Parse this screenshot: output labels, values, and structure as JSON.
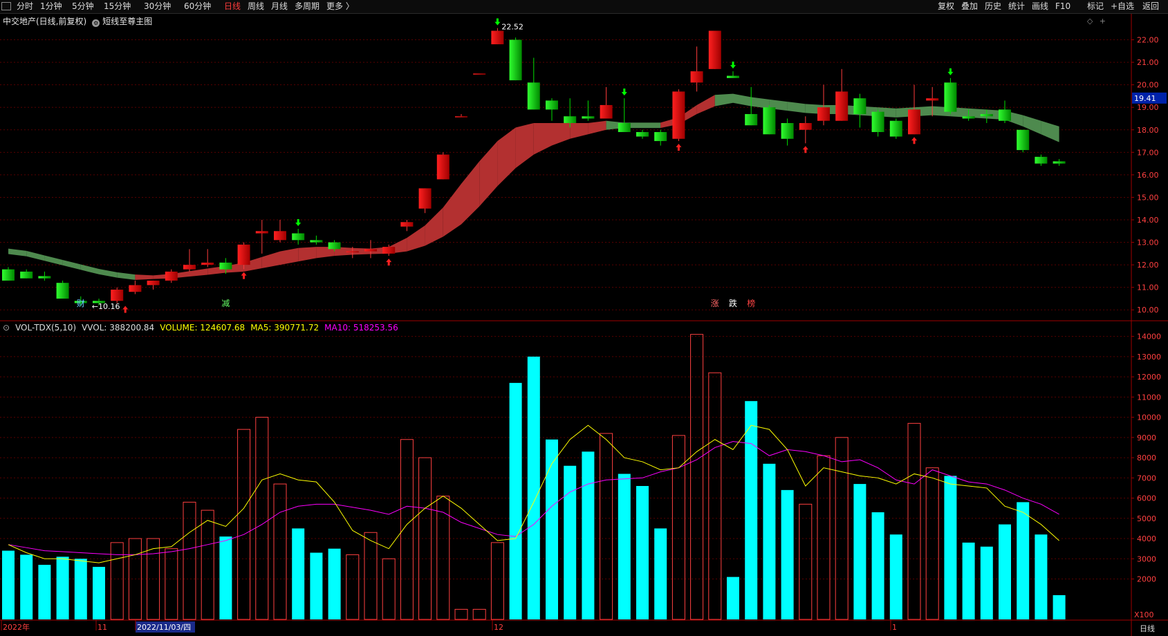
{
  "toolbar": {
    "left_items": [
      "分时",
      "1分钟",
      "5分钟",
      "15分钟",
      "30分钟",
      "60分钟",
      "日线",
      "周线",
      "月线",
      "多周期",
      "更多 〉"
    ],
    "active": "日线",
    "right_items": [
      "复权",
      "叠加",
      "历史",
      "统计",
      "画线",
      "F10",
      "标记",
      "+自选",
      "返回"
    ]
  },
  "title": {
    "stock": "中交地产(日线,前复权)",
    "indicator": "短线至尊主图"
  },
  "vol_legend": {
    "name": "VOL-TDX(5,10)",
    "vvol": "VVOL: 388200.84",
    "volume": "VOLUME: 124607.68",
    "ma5": "MA5: 390771.72",
    "ma10": "MA10: 518253.56"
  },
  "price_panel": {
    "current_price_tag": "19.41",
    "high_label": "22.52",
    "low_label": "10.16",
    "signal_labels": [
      "财",
      "减",
      "涨",
      "跌",
      "榜"
    ]
  },
  "x_axis": {
    "labels": [
      "2022年",
      "11",
      "2022/11/03/四",
      "12",
      "1"
    ],
    "period": "日线",
    "vol_unit": "X100"
  },
  "colors": {
    "up": "#ff3b3b",
    "down": "#00e000",
    "vol_down": "#00ffff",
    "ma5": "#ffff00",
    "ma10": "#ff00ff",
    "band_up": "#b33030",
    "band_down": "#4e8a4e",
    "grid": "#5a0000"
  },
  "chart_data": [
    {
      "type": "candlestick",
      "title": "中交地产(日线,前复权)",
      "ylim": [
        9.7,
        22.6
      ],
      "yticks": [
        10.0,
        11.0,
        12.0,
        13.0,
        14.0,
        15.0,
        16.0,
        17.0,
        18.0,
        19.0,
        20.0,
        21.0,
        22.0
      ],
      "series": [
        {
          "o": 11.8,
          "h": 11.9,
          "l": 11.3,
          "c": 11.3
        },
        {
          "o": 11.7,
          "h": 11.8,
          "l": 11.4,
          "c": 11.4
        },
        {
          "o": 11.5,
          "h": 11.7,
          "l": 11.3,
          "c": 11.4
        },
        {
          "o": 11.2,
          "h": 11.3,
          "l": 10.5,
          "c": 10.5
        },
        {
          "o": 10.4,
          "h": 10.6,
          "l": 10.16,
          "c": 10.3
        },
        {
          "o": 10.4,
          "h": 10.5,
          "l": 10.2,
          "c": 10.3
        },
        {
          "o": 10.4,
          "h": 11.0,
          "l": 10.3,
          "c": 10.9
        },
        {
          "o": 10.8,
          "h": 11.3,
          "l": 10.7,
          "c": 11.1
        },
        {
          "o": 11.1,
          "h": 11.3,
          "l": 10.9,
          "c": 11.3
        },
        {
          "o": 11.3,
          "h": 11.8,
          "l": 11.2,
          "c": 11.7
        },
        {
          "o": 11.8,
          "h": 12.7,
          "l": 11.7,
          "c": 12.0
        },
        {
          "o": 12.0,
          "h": 12.7,
          "l": 11.9,
          "c": 12.1
        },
        {
          "o": 12.1,
          "h": 12.3,
          "l": 11.6,
          "c": 11.8
        },
        {
          "o": 12.0,
          "h": 13.0,
          "l": 11.8,
          "c": 12.9
        },
        {
          "o": 13.4,
          "h": 14.0,
          "l": 12.5,
          "c": 13.5
        },
        {
          "o": 13.1,
          "h": 14.0,
          "l": 13.0,
          "c": 13.5
        },
        {
          "o": 13.4,
          "h": 13.6,
          "l": 12.9,
          "c": 13.1
        },
        {
          "o": 13.1,
          "h": 13.3,
          "l": 12.9,
          "c": 13.0
        },
        {
          "o": 13.0,
          "h": 13.1,
          "l": 12.6,
          "c": 12.7
        },
        {
          "o": 12.6,
          "h": 12.8,
          "l": 12.3,
          "c": 12.6
        },
        {
          "o": 12.6,
          "h": 13.1,
          "l": 12.3,
          "c": 12.7
        },
        {
          "o": 12.5,
          "h": 12.9,
          "l": 12.4,
          "c": 12.8
        },
        {
          "o": 13.7,
          "h": 14.0,
          "l": 13.5,
          "c": 13.9
        },
        {
          "o": 14.5,
          "h": 15.4,
          "l": 14.3,
          "c": 15.4
        },
        {
          "o": 15.8,
          "h": 17.0,
          "l": 15.8,
          "c": 16.9
        },
        {
          "o": 18.6,
          "h": 18.7,
          "l": 18.6,
          "c": 18.6
        },
        {
          "o": 20.5,
          "h": 20.5,
          "l": 20.5,
          "c": 20.5
        },
        {
          "o": 21.8,
          "h": 22.52,
          "l": 21.8,
          "c": 22.4
        },
        {
          "o": 22.0,
          "h": 22.1,
          "l": 20.2,
          "c": 20.2
        },
        {
          "o": 20.1,
          "h": 21.2,
          "l": 18.9,
          "c": 18.9
        },
        {
          "o": 19.3,
          "h": 19.4,
          "l": 18.4,
          "c": 18.9
        },
        {
          "o": 18.6,
          "h": 19.4,
          "l": 18.1,
          "c": 18.3
        },
        {
          "o": 18.6,
          "h": 19.3,
          "l": 18.4,
          "c": 18.5
        },
        {
          "o": 18.5,
          "h": 19.9,
          "l": 18.5,
          "c": 19.1
        },
        {
          "o": 18.3,
          "h": 19.4,
          "l": 17.9,
          "c": 17.9
        },
        {
          "o": 17.9,
          "h": 18.0,
          "l": 17.6,
          "c": 17.7
        },
        {
          "o": 17.9,
          "h": 18.0,
          "l": 17.3,
          "c": 17.5
        },
        {
          "o": 17.6,
          "h": 19.8,
          "l": 17.5,
          "c": 19.7
        },
        {
          "o": 20.1,
          "h": 21.7,
          "l": 19.7,
          "c": 20.6
        },
        {
          "o": 20.7,
          "h": 22.4,
          "l": 20.7,
          "c": 22.4
        },
        {
          "o": 20.4,
          "h": 20.6,
          "l": 20.3,
          "c": 20.3
        },
        {
          "o": 18.7,
          "h": 19.9,
          "l": 18.2,
          "c": 18.2
        },
        {
          "o": 19.0,
          "h": 19.1,
          "l": 17.8,
          "c": 17.8
        },
        {
          "o": 18.3,
          "h": 18.5,
          "l": 17.3,
          "c": 17.6
        },
        {
          "o": 18.0,
          "h": 18.6,
          "l": 17.4,
          "c": 18.3
        },
        {
          "o": 18.4,
          "h": 20.0,
          "l": 18.2,
          "c": 19.0
        },
        {
          "o": 18.4,
          "h": 20.7,
          "l": 18.4,
          "c": 19.7
        },
        {
          "o": 19.4,
          "h": 19.6,
          "l": 18.1,
          "c": 18.7
        },
        {
          "o": 18.8,
          "h": 18.9,
          "l": 17.7,
          "c": 17.9
        },
        {
          "o": 18.4,
          "h": 18.5,
          "l": 17.6,
          "c": 17.7
        },
        {
          "o": 17.8,
          "h": 20.0,
          "l": 17.8,
          "c": 18.9
        },
        {
          "o": 19.3,
          "h": 19.9,
          "l": 18.6,
          "c": 19.4
        },
        {
          "o": 20.1,
          "h": 20.3,
          "l": 18.7,
          "c": 18.8
        },
        {
          "o": 18.6,
          "h": 18.9,
          "l": 18.4,
          "c": 18.5
        },
        {
          "o": 18.7,
          "h": 18.9,
          "l": 18.3,
          "c": 18.6
        },
        {
          "o": 18.9,
          "h": 19.3,
          "l": 18.3,
          "c": 18.4
        },
        {
          "o": 18.0,
          "h": 18.0,
          "l": 17.0,
          "c": 17.1
        },
        {
          "o": 16.8,
          "h": 16.9,
          "l": 16.4,
          "c": 16.5
        },
        {
          "o": 16.6,
          "h": 16.7,
          "l": 16.4,
          "c": 16.5
        }
      ],
      "band": [
        {
          "v": 12.6,
          "w": 0.12,
          "up": false
        },
        {
          "v": 12.5,
          "w": 0.12,
          "up": false
        },
        {
          "v": 12.3,
          "w": 0.12,
          "up": false
        },
        {
          "v": 12.1,
          "w": 0.12,
          "up": false
        },
        {
          "v": 11.9,
          "w": 0.12,
          "up": false
        },
        {
          "v": 11.7,
          "w": 0.12,
          "up": false
        },
        {
          "v": 11.55,
          "w": 0.12,
          "up": false
        },
        {
          "v": 11.45,
          "w": 0.12,
          "up": false
        },
        {
          "v": 11.45,
          "w": 0.08,
          "up": true
        },
        {
          "v": 11.5,
          "w": 0.1,
          "up": true
        },
        {
          "v": 11.6,
          "w": 0.12,
          "up": true
        },
        {
          "v": 11.7,
          "w": 0.14,
          "up": true
        },
        {
          "v": 11.8,
          "w": 0.15,
          "up": true
        },
        {
          "v": 11.9,
          "w": 0.2,
          "up": true
        },
        {
          "v": 12.1,
          "w": 0.25,
          "up": true
        },
        {
          "v": 12.3,
          "w": 0.3,
          "up": true
        },
        {
          "v": 12.45,
          "w": 0.3,
          "up": true
        },
        {
          "v": 12.55,
          "w": 0.25,
          "up": true
        },
        {
          "v": 12.6,
          "w": 0.2,
          "up": true
        },
        {
          "v": 12.6,
          "w": 0.15,
          "up": true
        },
        {
          "v": 12.6,
          "w": 0.12,
          "up": true
        },
        {
          "v": 12.65,
          "w": 0.15,
          "up": true
        },
        {
          "v": 12.9,
          "w": 0.3,
          "up": true
        },
        {
          "v": 13.3,
          "w": 0.45,
          "up": true
        },
        {
          "v": 13.9,
          "w": 0.65,
          "up": true
        },
        {
          "v": 14.7,
          "w": 0.9,
          "up": true
        },
        {
          "v": 15.6,
          "w": 1.0,
          "up": true
        },
        {
          "v": 16.5,
          "w": 1.0,
          "up": true
        },
        {
          "v": 17.2,
          "w": 0.9,
          "up": true
        },
        {
          "v": 17.6,
          "w": 0.7,
          "up": true
        },
        {
          "v": 17.8,
          "w": 0.5,
          "up": true
        },
        {
          "v": 17.95,
          "w": 0.35,
          "up": true
        },
        {
          "v": 18.05,
          "w": 0.25,
          "up": true
        },
        {
          "v": 18.2,
          "w": 0.2,
          "up": true
        },
        {
          "v": 18.2,
          "w": 0.12,
          "up": false
        },
        {
          "v": 18.2,
          "w": 0.12,
          "up": false
        },
        {
          "v": 18.2,
          "w": 0.12,
          "up": false
        },
        {
          "v": 18.4,
          "w": 0.15,
          "up": true
        },
        {
          "v": 18.9,
          "w": 0.2,
          "up": true
        },
        {
          "v": 19.3,
          "w": 0.25,
          "up": true
        },
        {
          "v": 19.4,
          "w": 0.2,
          "up": false
        },
        {
          "v": 19.25,
          "w": 0.2,
          "up": false
        },
        {
          "v": 19.15,
          "w": 0.2,
          "up": false
        },
        {
          "v": 19.05,
          "w": 0.2,
          "up": false
        },
        {
          "v": 18.95,
          "w": 0.2,
          "up": false
        },
        {
          "v": 18.9,
          "w": 0.2,
          "up": false
        },
        {
          "v": 18.9,
          "w": 0.2,
          "up": false
        },
        {
          "v": 18.85,
          "w": 0.2,
          "up": false
        },
        {
          "v": 18.8,
          "w": 0.2,
          "up": false
        },
        {
          "v": 18.75,
          "w": 0.2,
          "up": false
        },
        {
          "v": 18.8,
          "w": 0.2,
          "up": false
        },
        {
          "v": 18.85,
          "w": 0.2,
          "up": false
        },
        {
          "v": 18.8,
          "w": 0.2,
          "up": false
        },
        {
          "v": 18.75,
          "w": 0.2,
          "up": false
        },
        {
          "v": 18.7,
          "w": 0.2,
          "up": false
        },
        {
          "v": 18.65,
          "w": 0.2,
          "up": false
        },
        {
          "v": 18.4,
          "w": 0.25,
          "up": false
        },
        {
          "v": 18.1,
          "w": 0.3,
          "up": false
        },
        {
          "v": 17.8,
          "w": 0.35,
          "up": false
        }
      ],
      "up_arrows": [
        6,
        13,
        21,
        37,
        44,
        50
      ],
      "down_arrows": [
        16,
        27,
        34,
        40,
        52
      ]
    },
    {
      "type": "bar",
      "title": "VOL-TDX(5,10)",
      "ylim": [
        0,
        14500
      ],
      "yticks": [
        2000,
        3000,
        4000,
        5000,
        6000,
        7000,
        8000,
        9000,
        10000,
        11000,
        12000,
        13000,
        14000
      ],
      "volumes": [
        3400,
        3200,
        2700,
        3100,
        3000,
        2600,
        3800,
        4000,
        4000,
        3500,
        5800,
        5400,
        4100,
        9400,
        10000,
        6700,
        4500,
        3300,
        3500,
        3200,
        4300,
        3000,
        8900,
        8000,
        6100,
        500,
        500,
        3800,
        11700,
        13000,
        8900,
        7600,
        8300,
        9200,
        7200,
        6600,
        4500,
        9100,
        14100,
        12200,
        2100,
        10800,
        7700,
        6400,
        5700,
        8100,
        9000,
        6700,
        5300,
        4200,
        9700,
        7500,
        7100,
        3800,
        3600,
        4700,
        5800,
        4200,
        1200
      ],
      "ma5": [
        3700,
        3300,
        3000,
        3000,
        2900,
        2800,
        3000,
        3200,
        3500,
        3600,
        4300,
        4900,
        4600,
        5500,
        6900,
        7200,
        6900,
        6800,
        5800,
        4400,
        3900,
        3500,
        4700,
        5500,
        6100,
        5500,
        4700,
        3900,
        4000,
        5800,
        7700,
        8900,
        9600,
        8900,
        8000,
        7800,
        7400,
        7500,
        8300,
        8900,
        8400,
        9600,
        9400,
        8400,
        6600,
        7500,
        7300,
        7100,
        7000,
        6700,
        7200,
        7000,
        6700,
        6600,
        6500,
        5600,
        5300,
        4700,
        3900
      ],
      "ma10": [
        3700,
        3550,
        3400,
        3350,
        3300,
        3250,
        3200,
        3200,
        3250,
        3350,
        3500,
        3700,
        3900,
        4200,
        4700,
        5300,
        5600,
        5700,
        5700,
        5550,
        5400,
        5200,
        5600,
        5500,
        5300,
        4800,
        4500,
        4200,
        4100,
        4700,
        5600,
        6300,
        6700,
        6900,
        6950,
        7000,
        7300,
        7500,
        7900,
        8500,
        8800,
        8700,
        8100,
        8400,
        8300,
        8100,
        7800,
        7900,
        7500,
        6900,
        6700,
        7400,
        7100,
        6800,
        6700,
        6400,
        6000,
        5700,
        5200
      ]
    }
  ]
}
